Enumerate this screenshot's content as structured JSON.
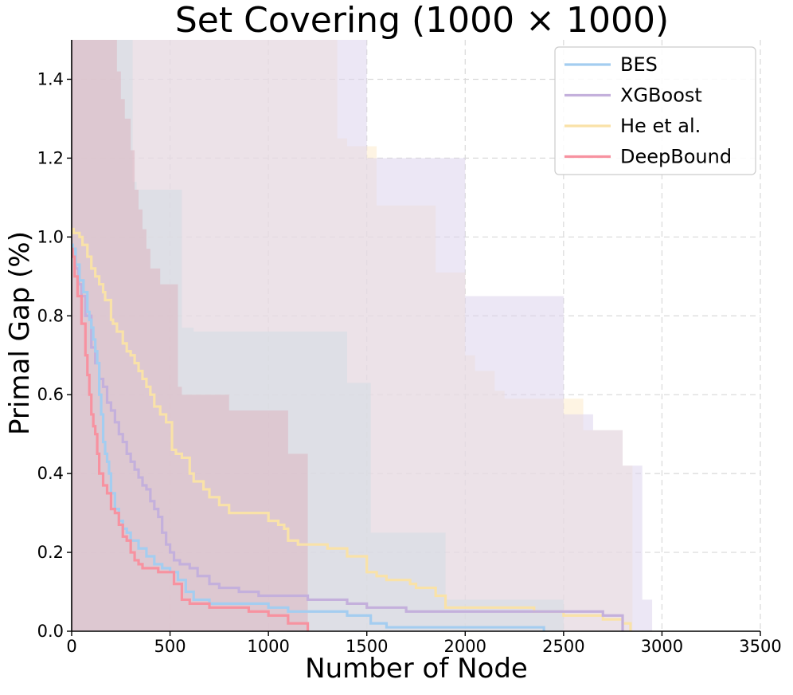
{
  "chart_data": {
    "type": "line",
    "title": "Set Covering (1000 × 1000)",
    "xlabel": "Number of Node",
    "ylabel": "Primal Gap (%)",
    "xlim": [
      0,
      3500
    ],
    "ylim": [
      0,
      1.5
    ],
    "xticks": [
      0,
      500,
      1000,
      1500,
      2000,
      2500,
      3000,
      3500
    ],
    "yticks": [
      0.0,
      0.2,
      0.4,
      0.6,
      0.8,
      1.0,
      1.2,
      1.4
    ],
    "xtick_labels": [
      "0",
      "500",
      "1000",
      "1500",
      "2000",
      "2500",
      "3000",
      "3500"
    ],
    "ytick_labels": [
      "0.0",
      "0.2",
      "0.4",
      "0.6",
      "0.8",
      "1.0",
      "1.2",
      "1.4"
    ],
    "grid": true,
    "legend_position": "top-right",
    "series": [
      {
        "name": "He et al.",
        "color": "#f9e2a8",
        "band_color": "#fdebcc",
        "step": true,
        "x": [
          0,
          10,
          40,
          55,
          80,
          100,
          120,
          140,
          160,
          170,
          200,
          210,
          230,
          260,
          280,
          300,
          320,
          340,
          360,
          380,
          400,
          420,
          450,
          480,
          510,
          530,
          560,
          600,
          620,
          670,
          700,
          750,
          800,
          830,
          850,
          900,
          1000,
          1050,
          1080,
          1100,
          1150,
          1200,
          1220,
          1300,
          1400,
          1500,
          1550,
          1600,
          1720,
          1750,
          1850,
          1900,
          2000,
          2350,
          2400,
          2500,
          2700,
          2800,
          2840
        ],
        "y": [
          1.02,
          1.01,
          1.0,
          0.98,
          0.95,
          0.92,
          0.9,
          0.88,
          0.86,
          0.84,
          0.79,
          0.78,
          0.76,
          0.73,
          0.71,
          0.7,
          0.68,
          0.66,
          0.64,
          0.62,
          0.6,
          0.57,
          0.55,
          0.53,
          0.46,
          0.45,
          0.44,
          0.4,
          0.38,
          0.36,
          0.34,
          0.32,
          0.3,
          0.3,
          0.3,
          0.3,
          0.28,
          0.27,
          0.26,
          0.23,
          0.22,
          0.22,
          0.22,
          0.21,
          0.19,
          0.15,
          0.14,
          0.13,
          0.12,
          0.11,
          0.09,
          0.06,
          0.06,
          0.05,
          0.05,
          0.04,
          0.03,
          0.02,
          0.0
        ],
        "upper_x": [
          0,
          210,
          300,
          400,
          500,
          600,
          700,
          800,
          900,
          950,
          1000,
          1050,
          1200,
          1280,
          1350,
          1400,
          1500,
          1550,
          1600,
          1700,
          1800,
          1850,
          1900,
          1950,
          2000,
          2050,
          2150,
          2200,
          2300,
          2400,
          2500,
          2600,
          2700,
          2800,
          2850,
          3000
        ],
        "upper_y": [
          1.5,
          1.5,
          1.5,
          1.5,
          1.5,
          1.5,
          1.5,
          1.5,
          1.5,
          1.5,
          1.5,
          1.5,
          1.5,
          1.5,
          1.25,
          1.23,
          1.23,
          1.08,
          1.08,
          1.08,
          1.08,
          0.91,
          0.91,
          0.91,
          0.7,
          0.66,
          0.61,
          0.59,
          0.59,
          0.59,
          0.59,
          0.51,
          0.51,
          0.42,
          0.0,
          0.0
        ]
      },
      {
        "name": "XGBoost",
        "color": "#c4b0dc",
        "band_color": "#ddd4ec",
        "step": true,
        "x": [
          0,
          5,
          20,
          35,
          50,
          70,
          100,
          120,
          140,
          160,
          180,
          200,
          220,
          240,
          260,
          280,
          300,
          320,
          340,
          360,
          380,
          400,
          420,
          440,
          460,
          480,
          500,
          520,
          550,
          600,
          640,
          700,
          750,
          800,
          850,
          900,
          950,
          1000,
          1100,
          1200,
          1300,
          1400,
          1500,
          1600,
          1700,
          1800,
          1900,
          2000,
          2200,
          2400,
          2600,
          2700,
          2800
        ],
        "y": [
          0.98,
          0.97,
          0.92,
          0.88,
          0.85,
          0.8,
          0.72,
          0.68,
          0.64,
          0.62,
          0.58,
          0.56,
          0.53,
          0.5,
          0.48,
          0.45,
          0.43,
          0.41,
          0.39,
          0.37,
          0.36,
          0.33,
          0.31,
          0.29,
          0.25,
          0.22,
          0.2,
          0.18,
          0.17,
          0.16,
          0.14,
          0.12,
          0.11,
          0.11,
          0.1,
          0.1,
          0.09,
          0.09,
          0.09,
          0.08,
          0.08,
          0.07,
          0.06,
          0.06,
          0.05,
          0.05,
          0.05,
          0.05,
          0.05,
          0.05,
          0.05,
          0.04,
          0.0
        ],
        "upper_x": [
          0,
          1500,
          2000,
          2500,
          2650,
          2700,
          2750,
          2800,
          2850,
          2900,
          2950,
          3000
        ],
        "upper_y": [
          1.5,
          1.2,
          0.85,
          0.55,
          0.51,
          0.51,
          0.51,
          0.42,
          0.42,
          0.08,
          0.0,
          0.0
        ]
      },
      {
        "name": "BES",
        "color": "#a4cdf0",
        "band_color": "#d3dce4",
        "step": true,
        "x": [
          0,
          5,
          20,
          40,
          60,
          80,
          90,
          100,
          110,
          120,
          130,
          140,
          150,
          160,
          170,
          180,
          190,
          200,
          220,
          240,
          260,
          280,
          300,
          340,
          380,
          420,
          460,
          500,
          540,
          580,
          620,
          700,
          800,
          900,
          1000,
          1100,
          1200,
          1300,
          1400,
          1520,
          1600,
          2000,
          2400
        ],
        "y": [
          0.98,
          0.97,
          0.93,
          0.89,
          0.86,
          0.81,
          0.79,
          0.77,
          0.74,
          0.71,
          0.68,
          0.6,
          0.55,
          0.48,
          0.45,
          0.43,
          0.4,
          0.35,
          0.31,
          0.28,
          0.26,
          0.25,
          0.23,
          0.21,
          0.19,
          0.17,
          0.16,
          0.15,
          0.13,
          0.1,
          0.08,
          0.07,
          0.07,
          0.07,
          0.06,
          0.05,
          0.05,
          0.05,
          0.04,
          0.02,
          0.01,
          0.01,
          0.0
        ],
        "upper_x": [
          0,
          210,
          310,
          330,
          400,
          500,
          560,
          570,
          620,
          700,
          800,
          1000,
          1150,
          1350,
          1400,
          1500,
          1520,
          1550,
          1700,
          1800,
          1900,
          2000,
          2200,
          2400,
          2500
        ],
        "upper_y": [
          1.5,
          1.5,
          1.14,
          1.12,
          1.12,
          1.12,
          0.77,
          0.77,
          0.76,
          0.76,
          0.76,
          0.76,
          0.76,
          0.76,
          0.63,
          0.63,
          0.25,
          0.25,
          0.25,
          0.25,
          0.08,
          0.08,
          0.08,
          0.08,
          0.0
        ]
      },
      {
        "name": "DeepBound",
        "color": "#f792a0",
        "band_color": "#dcb4c0",
        "step": true,
        "x": [
          0,
          5,
          15,
          30,
          50,
          70,
          80,
          90,
          100,
          110,
          120,
          130,
          140,
          160,
          180,
          200,
          220,
          240,
          260,
          280,
          300,
          320,
          340,
          360,
          400,
          440,
          480,
          520,
          560,
          600,
          700,
          800,
          900,
          1000,
          1100,
          1200
        ],
        "y": [
          0.97,
          0.95,
          0.9,
          0.85,
          0.78,
          0.7,
          0.65,
          0.6,
          0.55,
          0.52,
          0.5,
          0.45,
          0.4,
          0.37,
          0.35,
          0.31,
          0.3,
          0.27,
          0.24,
          0.23,
          0.2,
          0.18,
          0.17,
          0.16,
          0.16,
          0.15,
          0.15,
          0.12,
          0.08,
          0.07,
          0.06,
          0.06,
          0.05,
          0.04,
          0.02,
          0.0
        ],
        "upper_x": [
          0,
          100,
          200,
          230,
          250,
          270,
          300,
          320,
          340,
          360,
          380,
          400,
          450,
          500,
          540,
          560,
          580,
          800,
          1050,
          1100,
          1150,
          1190,
          1200
        ],
        "upper_y": [
          1.5,
          1.5,
          1.5,
          1.42,
          1.35,
          1.3,
          1.22,
          1.12,
          1.07,
          1.02,
          0.97,
          0.92,
          0.88,
          0.88,
          0.62,
          0.6,
          0.6,
          0.56,
          0.56,
          0.45,
          0.45,
          0.45,
          0.0
        ]
      }
    ],
    "legend_order": [
      "BES",
      "XGBoost",
      "He et al.",
      "DeepBound"
    ]
  }
}
